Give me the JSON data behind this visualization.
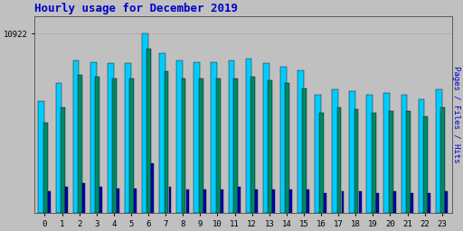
{
  "title": "Hourly usage for December 2019",
  "title_color": "#0000cc",
  "title_fontsize": 9,
  "ylabel_right": "Pages / Files / Hits",
  "ytick_label": "10922",
  "background_color": "#c0c0c0",
  "plot_bg_color": "#c0c0c0",
  "hours": [
    0,
    1,
    2,
    3,
    4,
    5,
    6,
    7,
    8,
    9,
    10,
    11,
    12,
    13,
    14,
    15,
    16,
    17,
    18,
    19,
    20,
    21,
    22,
    23
  ],
  "hits": [
    6800,
    7900,
    9300,
    9200,
    9100,
    9100,
    10922,
    9700,
    9300,
    9200,
    9200,
    9300,
    9400,
    9100,
    8900,
    8700,
    7200,
    7500,
    7400,
    7200,
    7300,
    7200,
    6900,
    7500
  ],
  "files": [
    5500,
    6400,
    8400,
    8300,
    8200,
    8200,
    10000,
    8600,
    8200,
    8200,
    8200,
    8200,
    8300,
    8100,
    7900,
    7600,
    6100,
    6400,
    6300,
    6100,
    6200,
    6200,
    5900,
    6400
  ],
  "pages": [
    1300,
    1600,
    1800,
    1600,
    1500,
    1500,
    3000,
    1600,
    1400,
    1400,
    1400,
    1600,
    1400,
    1400,
    1400,
    1400,
    1200,
    1300,
    1300,
    1200,
    1300,
    1200,
    1200,
    1300
  ],
  "color_hits": "#00ccff",
  "color_files": "#008866",
  "color_pages": "#0000bb",
  "edge_color": "#000000",
  "grid_color": "#aaaaaa",
  "ymin": 0,
  "ymax": 12000,
  "ytick_val": 10922
}
